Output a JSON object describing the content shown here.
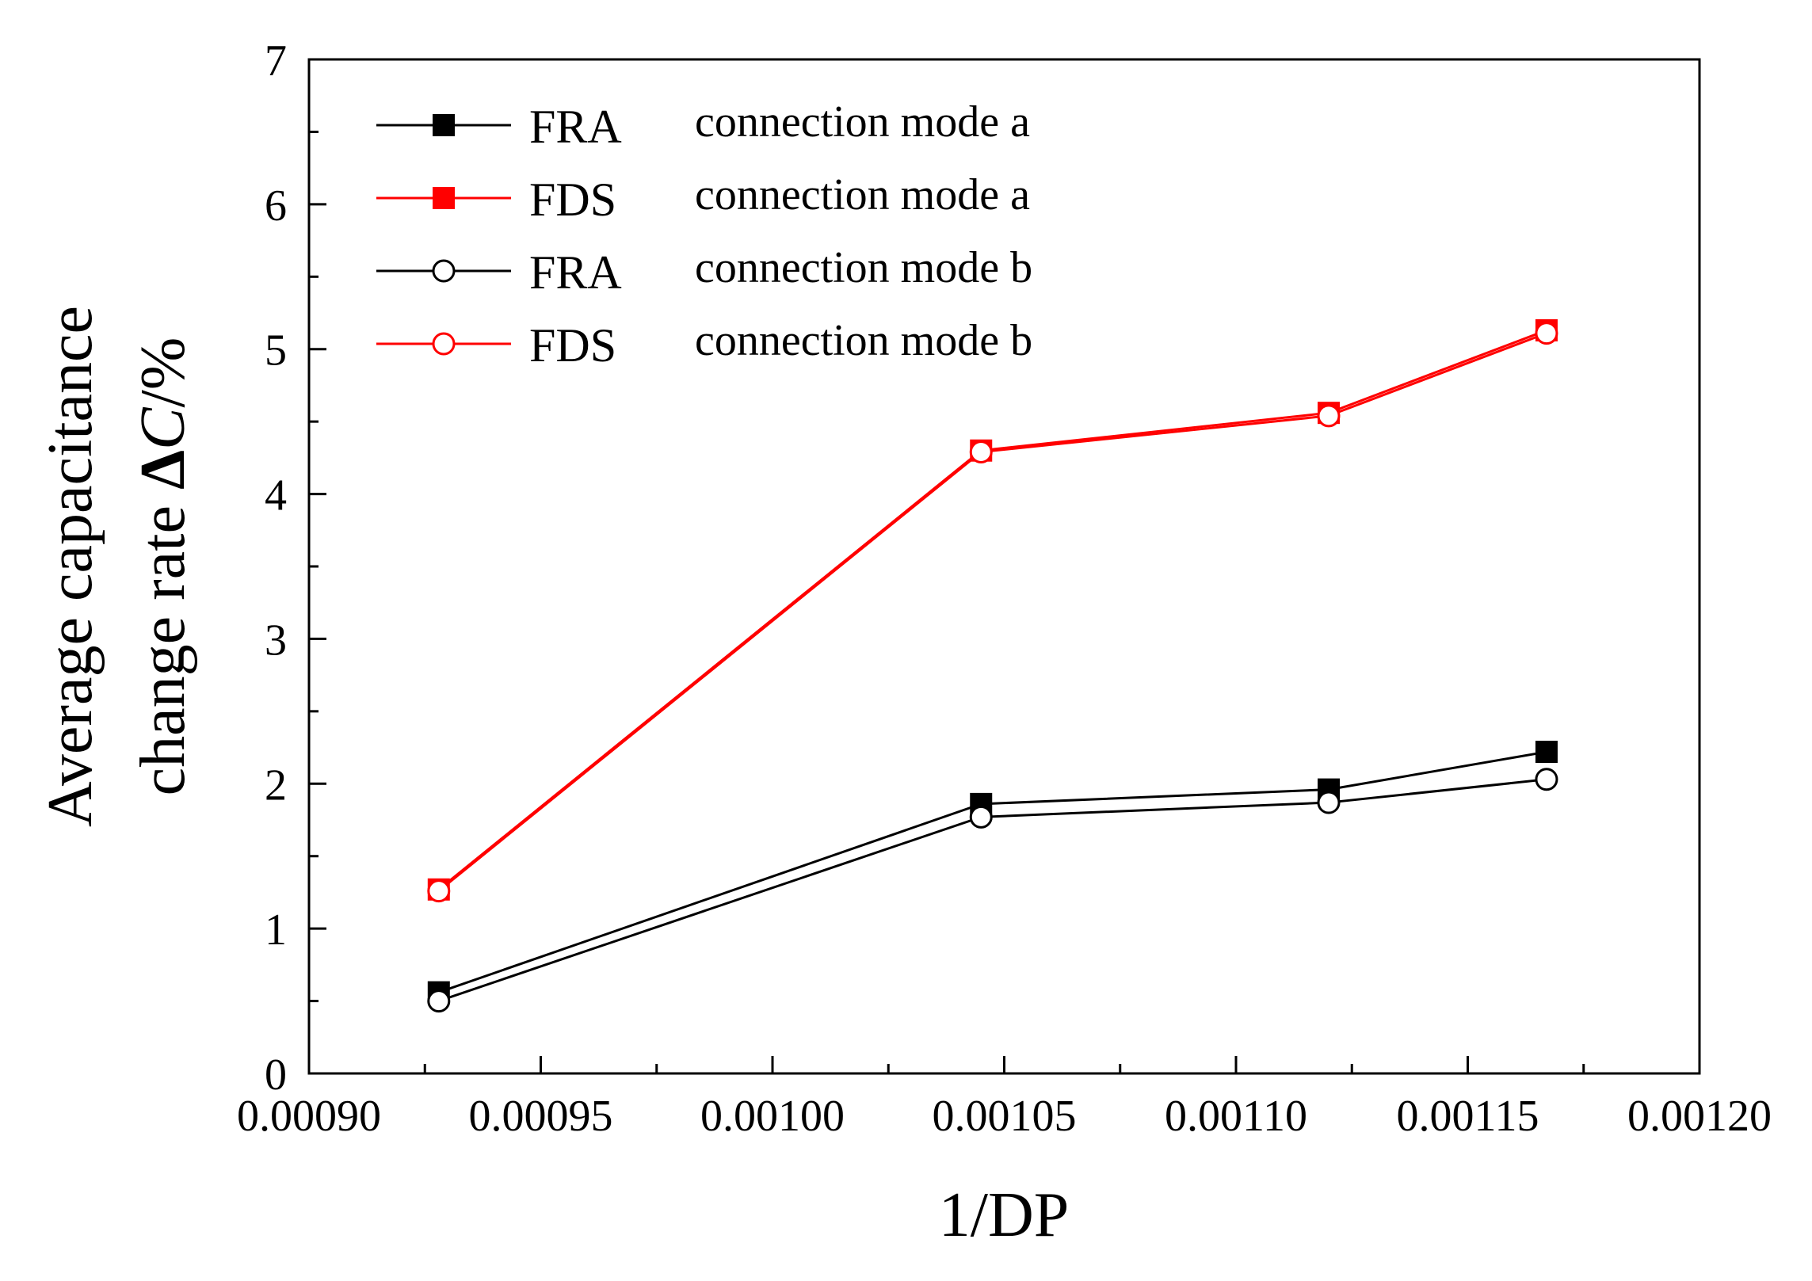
{
  "chart_data": {
    "type": "line",
    "title": "",
    "xlabel": "1/DP",
    "ylabel_line1": "Average capacitance",
    "ylabel_line2_prefix": "change rate ",
    "ylabel_line2_delta": "Δ",
    "ylabel_line2_var": "C",
    "ylabel_line2_suffix": "/%",
    "xlim": [
      0.0009,
      0.0012
    ],
    "ylim": [
      0,
      7
    ],
    "x_ticks": [
      "0.00090",
      "0.00095",
      "0.00100",
      "0.00105",
      "0.00110",
      "0.00115",
      "0.00120"
    ],
    "y_ticks": [
      "0",
      "1",
      "2",
      "3",
      "4",
      "5",
      "6",
      "7"
    ],
    "x": [
      0.000928,
      0.001045,
      0.00112,
      0.001167
    ],
    "series": [
      {
        "name": "FRA",
        "mode": "connection mode a",
        "marker": "square-filled",
        "color": "#000000",
        "values": [
          0.56,
          1.86,
          1.96,
          2.22
        ]
      },
      {
        "name": "FDS",
        "mode": "connection mode a",
        "marker": "square-filled",
        "color": "#ff0000",
        "values": [
          1.27,
          4.3,
          4.56,
          5.13
        ]
      },
      {
        "name": "FRA",
        "mode": "connection mode b",
        "marker": "circle-open",
        "color": "#000000",
        "values": [
          0.5,
          1.77,
          1.87,
          2.03
        ]
      },
      {
        "name": "FDS",
        "mode": "connection mode b",
        "marker": "circle-open",
        "color": "#ff0000",
        "values": [
          1.26,
          4.29,
          4.54,
          5.11
        ]
      }
    ],
    "legend_position": "top-left",
    "grid": false
  }
}
